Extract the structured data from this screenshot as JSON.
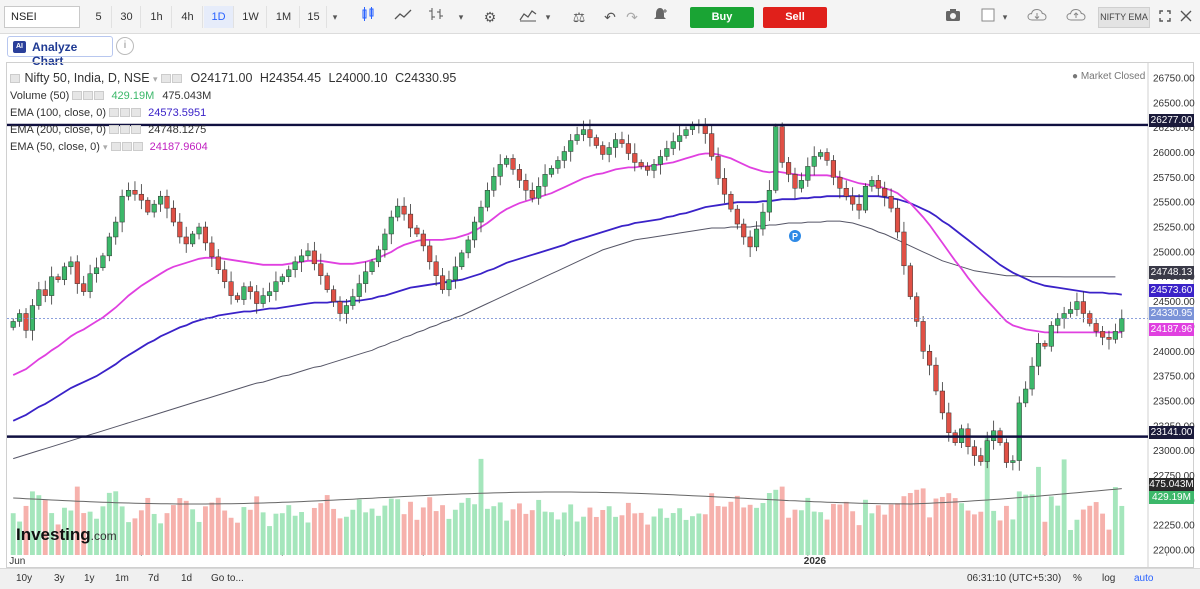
{
  "toolbar": {
    "symbol": "NSEI",
    "intervals": [
      "5",
      "30",
      "1h",
      "4h",
      "1D",
      "1W",
      "1M",
      "15"
    ],
    "active_interval": "1D",
    "buy_label": "Buy",
    "sell_label": "Sell",
    "indicator_label": "NIFTY EMA"
  },
  "analyze": {
    "label": "Analyze Chart",
    "badge": "AI",
    "info": "i"
  },
  "legend": {
    "title": "Nifty 50, India, D, NSE",
    "open": "O24171.00",
    "high": "H24354.45",
    "low": "L24000.10",
    "close": "C24330.95",
    "market_status": "Market Closed",
    "volume": {
      "label": "Volume (50)",
      "v1": "429.19M",
      "v2": "475.043M"
    },
    "ema100": {
      "label": "EMA (100, close, 0)",
      "value": "24573.5951"
    },
    "ema200": {
      "label": "EMA (200, close, 0)",
      "value": "24748.1275"
    },
    "ema50": {
      "label": "EMA (50, close, 0)",
      "value": "24187.9604"
    }
  },
  "price_tags": {
    "top_line": "26277.00",
    "ema200": "24748.13",
    "ema100": "24573.60",
    "close": "24330.95",
    "ema50": "24187.96",
    "bottom_line": "23141.00",
    "vol_avg": "475.043M",
    "vol_last": "429.19M"
  },
  "watermark": {
    "brand": "Investing",
    "suffix": ".com"
  },
  "bottom": {
    "ranges": [
      "10y",
      "3y",
      "1y",
      "1m",
      "7d",
      "1d",
      "Go to..."
    ],
    "time": "06:31:10 (UTC+5:30)",
    "percent": "%",
    "log": "log",
    "auto": "auto"
  },
  "colors": {
    "up": "#3cb86a",
    "down": "#e05045",
    "ema50": "#e040e0",
    "ema100": "#3a22c8",
    "ema200": "#555566",
    "hline": "#101040"
  },
  "chart_data": {
    "type": "candlestick",
    "y_ticks": [
      22000,
      22250,
      22500,
      22750,
      23000,
      23250,
      23500,
      23750,
      24000,
      24250,
      24500,
      24750,
      25000,
      25250,
      25500,
      25750,
      26000,
      26250,
      26500,
      26750
    ],
    "ylim": [
      21950,
      26850
    ],
    "x_labels": [
      "Jun",
      "2026"
    ],
    "horizontal_lines": [
      26277.0,
      23141.0
    ],
    "closes": [
      24300,
      24380,
      24210,
      24460,
      24620,
      24560,
      24750,
      24720,
      24850,
      24900,
      24680,
      24600,
      24780,
      24840,
      24960,
      25150,
      25300,
      25560,
      25620,
      25580,
      25520,
      25400,
      25480,
      25560,
      25440,
      25300,
      25150,
      25080,
      25180,
      25250,
      25090,
      24950,
      24820,
      24700,
      24560,
      24520,
      24650,
      24600,
      24480,
      24560,
      24600,
      24700,
      24750,
      24820,
      24900,
      24960,
      25010,
      24880,
      24760,
      24620,
      24500,
      24380,
      24460,
      24550,
      24680,
      24800,
      24900,
      25020,
      25180,
      25350,
      25460,
      25380,
      25240,
      25180,
      25060,
      24900,
      24760,
      24620,
      24720,
      24850,
      24990,
      25120,
      25300,
      25450,
      25620,
      25760,
      25880,
      25940,
      25830,
      25720,
      25620,
      25540,
      25660,
      25780,
      25840,
      25920,
      26010,
      26120,
      26180,
      26230,
      26150,
      26070,
      25980,
      26050,
      26130,
      26090,
      25990,
      25900,
      25860,
      25820,
      25880,
      25960,
      26040,
      26110,
      26170,
      26230,
      26270,
      26280,
      26190,
      25960,
      25740,
      25580,
      25430,
      25280,
      25150,
      25050,
      25230,
      25400,
      25620,
      26260,
      25900,
      25780,
      25640,
      25720,
      25860,
      25960,
      26000,
      25920,
      25750,
      25640,
      25560,
      25480,
      25420,
      25660,
      25720,
      25640,
      25560,
      25440,
      25200,
      24860,
      24550,
      24300,
      24000,
      23860,
      23600,
      23380,
      23180,
      23080,
      23220,
      23040,
      22950,
      22890,
      23100,
      23200,
      23080,
      22880,
      22900,
      23480,
      23620,
      23850,
      24080,
      24050,
      24260,
      24330,
      24380,
      24420,
      24500,
      24380,
      24280,
      24200,
      24140,
      24120,
      24200,
      24330
    ],
    "ema50": [
      23760,
      23790,
      23820,
      23870,
      23920,
      23960,
      24010,
      24050,
      24100,
      24150,
      24190,
      24220,
      24260,
      24300,
      24340,
      24390,
      24440,
      24500,
      24560,
      24610,
      24660,
      24700,
      24740,
      24780,
      24820,
      24850,
      24870,
      24890,
      24910,
      24930,
      24940,
      24940,
      24940,
      24930,
      24920,
      24910,
      24900,
      24890,
      24880,
      24870,
      24870,
      24870,
      24870,
      24880,
      24890,
      24900,
      24910,
      24910,
      24910,
      24900,
      24890,
      24880,
      24880,
      24880,
      24890,
      24900,
      24920,
      24940,
      24970,
      25000,
      25040,
      25070,
      25090,
      25110,
      25120,
      25120,
      25120,
      25120,
      25130,
      25140,
      25160,
      25180,
      25210,
      25250,
      25290,
      25340,
      25390,
      25430,
      25460,
      25490,
      25510,
      25530,
      25550,
      25570,
      25590,
      25620,
      25650,
      25680,
      25710,
      25740,
      25760,
      25780,
      25790,
      25810,
      25830,
      25840,
      25850,
      25850,
      25860,
      25860,
      25870,
      25880,
      25890,
      25900,
      25920,
      25940,
      25960,
      25980,
      25990,
      25990,
      25980,
      25960,
      25940,
      25910,
      25880,
      25850,
      25830,
      25810,
      25800,
      25810,
      25800,
      25790,
      25780,
      25770,
      25770,
      25770,
      25770,
      25770,
      25760,
      25750,
      25730,
      25710,
      25690,
      25680,
      25670,
      25660,
      25640,
      25620,
      25590,
      25540,
      25490,
      25420,
      25350,
      25270,
      25180,
      25090,
      25000,
      24910,
      24830,
      24740,
      24660,
      24580,
      24510,
      24440,
      24370,
      24300,
      24260,
      24240,
      24220,
      24210,
      24200,
      24190,
      24190,
      24190,
      24190,
      24190,
      24190,
      24190,
      24190,
      24190,
      24190,
      24190,
      24190,
      24190
    ],
    "ema100": [
      23300,
      23330,
      23360,
      23400,
      23440,
      23470,
      23510,
      23550,
      23590,
      23630,
      23660,
      23690,
      23720,
      23750,
      23790,
      23830,
      23870,
      23920,
      23960,
      24000,
      24040,
      24080,
      24110,
      24150,
      24180,
      24210,
      24240,
      24260,
      24290,
      24310,
      24330,
      24340,
      24360,
      24370,
      24380,
      24390,
      24400,
      24400,
      24410,
      24420,
      24430,
      24430,
      24440,
      24450,
      24460,
      24470,
      24480,
      24490,
      24490,
      24490,
      24500,
      24500,
      24500,
      24510,
      24510,
      24520,
      24530,
      24550,
      24560,
      24580,
      24600,
      24620,
      24640,
      24650,
      24660,
      24670,
      24680,
      24690,
      24700,
      24710,
      24720,
      24740,
      24760,
      24780,
      24810,
      24830,
      24860,
      24890,
      24910,
      24930,
      24950,
      24970,
      24990,
      25010,
      25030,
      25050,
      25070,
      25100,
      25120,
      25140,
      25160,
      25180,
      25200,
      25220,
      25240,
      25260,
      25270,
      25290,
      25300,
      25310,
      25320,
      25330,
      25350,
      25360,
      25380,
      25390,
      25410,
      25430,
      25450,
      25460,
      25470,
      25480,
      25490,
      25500,
      25500,
      25500,
      25500,
      25510,
      25510,
      25520,
      25530,
      25530,
      25530,
      25540,
      25540,
      25550,
      25550,
      25560,
      25560,
      25560,
      25560,
      25560,
      25560,
      25560,
      25560,
      25560,
      25550,
      25540,
      25530,
      25510,
      25490,
      25460,
      25430,
      25400,
      25360,
      25310,
      25270,
      25220,
      25170,
      25120,
      25070,
      25020,
      24970,
      24920,
      24870,
      24830,
      24790,
      24760,
      24730,
      24700,
      24680,
      24660,
      24650,
      24640,
      24630,
      24620,
      24610,
      24600,
      24590,
      24590,
      24590,
      24580,
      24580,
      24570
    ],
    "ema200": [
      22920,
      22940,
      22960,
      22980,
      23000,
      23020,
      23040,
      23060,
      23080,
      23100,
      23120,
      23140,
      23160,
      23180,
      23200,
      23220,
      23240,
      23260,
      23280,
      23300,
      23320,
      23340,
      23360,
      23380,
      23400,
      23420,
      23440,
      23460,
      23480,
      23500,
      23520,
      23540,
      23560,
      23580,
      23600,
      23620,
      23640,
      23660,
      23680,
      23690,
      23710,
      23730,
      23750,
      23760,
      23780,
      23800,
      23820,
      23840,
      23850,
      23870,
      23890,
      23910,
      23930,
      23950,
      23970,
      23990,
      24010,
      24040,
      24060,
      24090,
      24110,
      24140,
      24160,
      24190,
      24210,
      24240,
      24260,
      24290,
      24310,
      24340,
      24360,
      24390,
      24420,
      24450,
      24480,
      24510,
      24540,
      24570,
      24600,
      24630,
      24660,
      24690,
      24720,
      24750,
      24780,
      24810,
      24840,
      24870,
      24900,
      24930,
      24960,
      24990,
      25020,
      25040,
      25060,
      25080,
      25100,
      25120,
      25130,
      25140,
      25150,
      25160,
      25170,
      25180,
      25190,
      25200,
      25210,
      25220,
      25230,
      25240,
      25240,
      25240,
      25250,
      25250,
      25250,
      25250,
      25260,
      25260,
      25270,
      25270,
      25280,
      25290,
      25290,
      25290,
      25300,
      25300,
      25300,
      25310,
      25310,
      25310,
      25300,
      25290,
      25270,
      25250,
      25230,
      25200,
      25180,
      25150,
      25120,
      25090,
      25060,
      25030,
      25000,
      24970,
      24940,
      24910,
      24890,
      24870,
      24850,
      24830,
      24810,
      24800,
      24790,
      24780,
      24770,
      24760,
      24760,
      24760,
      24755,
      24750,
      24750,
      24750,
      24750,
      24750,
      24748,
      24748,
      24748,
      24748,
      24748,
      24748,
      24748,
      24748,
      24748
    ],
    "volume": {
      "avg_label": "475.043M",
      "last_label": "429.19M"
    }
  }
}
